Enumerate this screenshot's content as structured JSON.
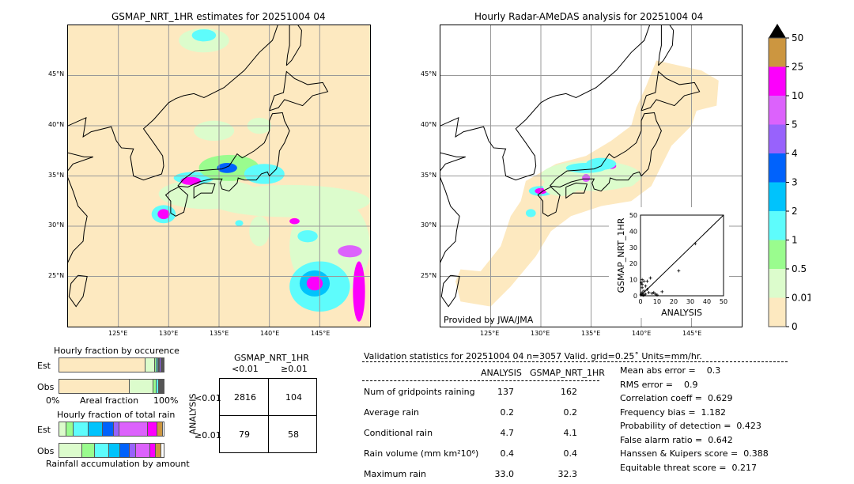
{
  "left_map": {
    "title": "GSMAP_NRT_1HR estimates for 20251004 04"
  },
  "right_map": {
    "title": "Hourly Radar-AMeDAS analysis for 20251004 04",
    "credit": "Provided by JWA/JMA"
  },
  "map_axes": {
    "lon_ticks": [
      "125°E",
      "130°E",
      "135°E",
      "140°E",
      "145°E"
    ],
    "lat_ticks": [
      "45°N",
      "40°N",
      "35°N",
      "30°N",
      "25°N"
    ]
  },
  "colorbar": {
    "labels": [
      "0",
      "0.01",
      "0.5",
      "1",
      "2",
      "3",
      "4",
      "5",
      "10",
      "25",
      "50"
    ],
    "colors": [
      "#fde9c0",
      "#dcfccc",
      "#9afc8e",
      "#5efcfc",
      "#00c3fc",
      "#0062fc",
      "#9862fc",
      "#dc62fc",
      "#fc00fc",
      "#cc9640"
    ],
    "extend": "max"
  },
  "chart_data": [
    {
      "type": "bar",
      "title": "Hourly fraction by occurence",
      "xlabel": "Areal fraction",
      "x_tick_labels": [
        "0%",
        "100%"
      ],
      "categories": [
        "Est",
        "Obs"
      ],
      "stacked_fractions": {
        "Est": [
          0.83,
          0.095,
          0.015,
          0.01,
          0.01,
          0.01,
          0.01,
          0.01,
          0.005,
          0.005
        ],
        "Obs": [
          0.685,
          0.232,
          0.035,
          0.018,
          0.01,
          0.008,
          0.005,
          0.004,
          0.002,
          0.001
        ]
      }
    },
    {
      "type": "bar",
      "title": "Hourly fraction of total rain",
      "xlabel": "Rainfall accumulation by amount",
      "categories": [
        "Est",
        "Obs"
      ],
      "stacked_fractions": {
        "Est": [
          0,
          0.07,
          0.07,
          0.14,
          0.14,
          0.1,
          0.055,
          0.275,
          0.09,
          0.05
        ],
        "Obs": [
          0,
          0.22,
          0.12,
          0.14,
          0.105,
          0.09,
          0.06,
          0.135,
          0.055,
          0.05
        ]
      }
    },
    {
      "type": "scatter",
      "xlabel": "ANALYSIS",
      "ylabel": "GSMAP_NRT_1HR",
      "xlim": [
        0,
        50
      ],
      "ylim": [
        0,
        50
      ],
      "ticks": [
        "0",
        "10",
        "20",
        "30",
        "40",
        "50"
      ],
      "points": [
        [
          33,
          32.3
        ],
        [
          23,
          15.5
        ],
        [
          13,
          2.5
        ],
        [
          6,
          11
        ],
        [
          9,
          1
        ],
        [
          10,
          0.5
        ],
        [
          8,
          2
        ],
        [
          1,
          10
        ],
        [
          2,
          9
        ],
        [
          1,
          7
        ],
        [
          3,
          6
        ],
        [
          4,
          4
        ],
        [
          2,
          3
        ],
        [
          1,
          2
        ],
        [
          0.5,
          1
        ],
        [
          3,
          1
        ],
        [
          5,
          2
        ],
        [
          2,
          0.5
        ],
        [
          1,
          5
        ],
        [
          0.5,
          8
        ],
        [
          4,
          9
        ],
        [
          7,
          1.5
        ],
        [
          1.5,
          0.3
        ],
        [
          0.3,
          0.5
        ]
      ]
    },
    {
      "type": "table",
      "title": "GSMAP_NRT_1HR",
      "col_labels": [
        "<0.01",
        "≥0.01"
      ],
      "row_title": "ANALYSIS",
      "row_labels": [
        "<0.01",
        "≥0.01"
      ],
      "cells": [
        [
          "2816",
          "104"
        ],
        [
          "79",
          "58"
        ]
      ]
    }
  ],
  "stats": {
    "header": "Validation statistics for 20251004 04  n=3057 Valid. grid=0.25˚ Units=mm/hr.",
    "col_analysis": "ANALYSIS",
    "col_gsmap": "GSMAP_NRT_1HR",
    "rows": [
      {
        "label": "Num of gridpoints raining",
        "a": "137",
        "g": "162"
      },
      {
        "label": "Average rain",
        "a": "0.2",
        "g": "0.2"
      },
      {
        "label": "Conditional rain",
        "a": "4.7",
        "g": "4.1"
      },
      {
        "label": "Rain volume (mm km²10⁶)",
        "a": "0.4",
        "g": "0.4"
      },
      {
        "label": "Maximum rain",
        "a": "33.0",
        "g": "32.3"
      }
    ],
    "scores": [
      "Mean abs error =    0.3",
      "RMS error =    0.9",
      "Correlation coeff =  0.629",
      "Frequency bias =  1.182",
      "Probability of detection =  0.423",
      "False alarm ratio =  0.642",
      "Hanssen & Kuipers score =  0.388",
      "Equitable threat score =  0.217"
    ]
  }
}
